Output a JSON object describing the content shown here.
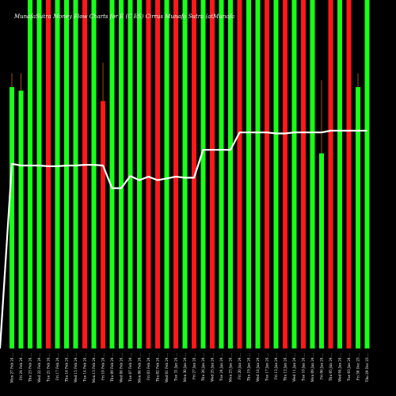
{
  "chart_data": {
    "type": "bar",
    "title": "MunafaSutra Money Flow Charts for E (C                    ES) Cirrus Munafa Sutra (atMunafa",
    "x": [
      "Mon 27 Feb 24 ...",
      "Fri 24 Feb 24 ...",
      "Thu 23 Feb 24 ...",
      "Wed 22 Feb 24 ...",
      "Tue 21 Feb 24 ...",
      "Fri 17 Feb 24 ...",
      "Thu 16 Feb 24 ...",
      "Wed 15 Feb 24 ...",
      "Tue 14 Feb 24 ...",
      "Mon 13 Feb 24 ...",
      "Fri 10 Feb 24 ...",
      "Thu 09 Feb 24 ...",
      "Wed 08 Feb 24 ...",
      "Tue 07 Feb 24 ...",
      "Mon 06 Feb 24 ...",
      "Fri 03 Feb 24 ...",
      "Thu 02 Feb 24 ...",
      "Wed 01 Feb 24 ...",
      "Tue 31 Jan 24 ...",
      "Mon 30 Jan 24 ...",
      "Fri 27 Jan 24 ...",
      "Thu 26 Jan 24 ...",
      "Wed 25 Jan 24 ...",
      "Tue 24 Jan 24 ...",
      "Mon 23 Jan 24 ...",
      "Fri 20 Jan 24 ...",
      "Thu 19 Jan 24 ...",
      "Wed 18 Jan 24 ...",
      "Tue 17 Jan 24 ...",
      "Fri 13 Jan 24 ...",
      "Thu 12 Jan 24 ...",
      "Wed 11 Jan 24 ...",
      "Tue 10 Jan 24 ...",
      "Mon 09 Jan 24 ...",
      "Fri 06 Jan 24 ...",
      "Thu 05 Jan 24 ...",
      "Wed 04 Jan 24 ...",
      "Tue 03 Jan 24 ...",
      "Fri 30 Dec 23 ...",
      "Thu 29 Dec 23 ..."
    ],
    "bar_colors": [
      "green",
      "green",
      "green",
      "green",
      "red",
      "green",
      "green",
      "green",
      "red",
      "green",
      "red",
      "green",
      "green",
      "green",
      "green",
      "red",
      "red",
      "green",
      "red",
      "green",
      "red",
      "green",
      "red",
      "green",
      "green",
      "red",
      "green",
      "green",
      "red",
      "green",
      "red",
      "green",
      "red",
      "green",
      "green",
      "red",
      "green",
      "red",
      "green",
      "green"
    ],
    "bar_values": [
      75,
      74,
      100,
      100,
      100,
      100,
      100,
      100,
      100,
      100,
      71,
      100,
      100,
      100,
      100,
      100,
      100,
      100,
      100,
      100,
      100,
      100,
      100,
      100,
      100,
      100,
      100,
      100,
      100,
      100,
      100,
      100,
      100,
      100,
      56,
      100,
      100,
      100,
      75,
      100
    ],
    "wick_values": [
      79,
      79,
      100,
      100,
      100,
      100,
      100,
      100,
      100,
      100,
      82,
      100,
      100,
      100,
      100,
      100,
      100,
      100,
      100,
      100,
      100,
      100,
      100,
      100,
      100,
      100,
      100,
      100,
      100,
      100,
      100,
      100,
      100,
      100,
      77,
      100,
      100,
      100,
      79,
      100
    ],
    "line_values": [
      53,
      52.5,
      52.5,
      52.5,
      52.3,
      52.3,
      52.5,
      52.5,
      52.7,
      52.7,
      52.5,
      46,
      46,
      49.5,
      48.3,
      49.3,
      48.3,
      48.8,
      49.3,
      49,
      49,
      57,
      57,
      57,
      57,
      62,
      62,
      62,
      62,
      61.7,
      61.7,
      62,
      62,
      62,
      62,
      62.5,
      62.5,
      62.5,
      62.5,
      62.5
    ],
    "line_start_value": 0,
    "ylim": [
      0,
      100
    ],
    "grid": false,
    "colors": {
      "green": "#18ff18",
      "red": "#ff1818",
      "line": "#ffffff",
      "wick": "#c86400",
      "background": "#000000"
    }
  }
}
